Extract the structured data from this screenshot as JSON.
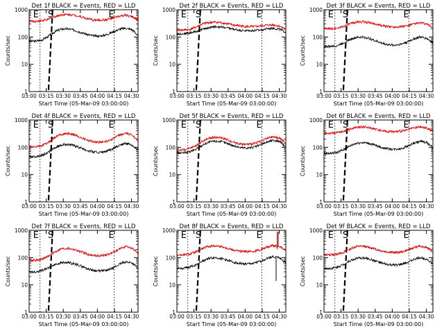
{
  "chart_data": [
    {
      "type": "line",
      "title": "Det 1f BLACK = Events, RED = LLD",
      "xlabel": "Start Time (05-Mar-09 03:00:00)",
      "ylabel": "Counts/sec",
      "xlim": [
        0,
        100
      ],
      "ylim": [
        1,
        1000
      ],
      "ylog": true,
      "x_tick_labels": [
        "03:00",
        "03:15",
        "03:30",
        "03:45",
        "04:00",
        "04:15",
        "04:30"
      ],
      "y_tick_labels": [
        "1",
        "10",
        "100",
        "1000"
      ],
      "markers": {
        "E1": 10,
        "S": 19,
        "E2": 78
      },
      "series": [
        {
          "color": "#000000",
          "values": [
            70,
            70,
            78,
            105,
            155,
            195,
            200,
            180,
            150,
            125,
            110,
            108,
            120,
            150,
            190,
            210,
            190,
            110
          ]
        },
        {
          "color": "#e00000",
          "values": [
            380,
            380,
            395,
            440,
            560,
            650,
            670,
            640,
            560,
            470,
            420,
            410,
            430,
            480,
            570,
            620,
            560,
            410
          ]
        }
      ]
    },
    {
      "type": "line",
      "title": "Det 2f BLACK = Events, RED = LLD",
      "xlabel": "Start Time (05-Mar-09 03:00:00)",
      "ylabel": "Counts/sec",
      "xlim": [
        0,
        100
      ],
      "ylim": [
        1,
        1000
      ],
      "ylog": true,
      "x_tick_labels": [
        "03:00",
        "03:15",
        "03:30",
        "03:45",
        "04:00",
        "04:15",
        "04:30"
      ],
      "y_tick_labels": [
        "1",
        "10",
        "100",
        "1000"
      ],
      "markers": {
        "E1": 10,
        "S": 19,
        "E2": 78
      },
      "series": [
        {
          "color": "#000000",
          "values": [
            130,
            132,
            140,
            160,
            190,
            220,
            240,
            230,
            210,
            190,
            175,
            170,
            172,
            180,
            200,
            210,
            190,
            150
          ]
        },
        {
          "color": "#e00000",
          "values": [
            180,
            182,
            190,
            230,
            300,
            340,
            350,
            330,
            300,
            270,
            250,
            240,
            240,
            250,
            270,
            280,
            250,
            190
          ]
        }
      ]
    },
    {
      "type": "line",
      "title": "Det 3f BLACK = Events, RED = LLD",
      "xlabel": "Start Time (05-Mar-09 03:00:00)",
      "ylabel": "Counts/sec",
      "xlim": [
        0,
        100
      ],
      "ylim": [
        1,
        1000
      ],
      "ylog": true,
      "x_tick_labels": [
        "03:00",
        "03:15",
        "03:30",
        "03:45",
        "04:00",
        "04:15",
        "04:30"
      ],
      "y_tick_labels": [
        "1",
        "10",
        "100",
        "1000"
      ],
      "markers": {
        "E1": 10,
        "S": 19,
        "E2": 78
      },
      "series": [
        {
          "color": "#000000",
          "values": [
            45,
            45,
            48,
            60,
            80,
            95,
            100,
            90,
            72,
            60,
            52,
            50,
            55,
            65,
            85,
            100,
            90,
            60
          ]
        },
        {
          "color": "#e00000",
          "values": [
            200,
            200,
            210,
            240,
            300,
            350,
            360,
            340,
            300,
            260,
            240,
            235,
            240,
            260,
            300,
            330,
            300,
            220
          ]
        }
      ]
    },
    {
      "type": "line",
      "title": "Det 4f BLACK = Events, RED = LLD",
      "xlabel": "Start Time (05-Mar-09 03:00:00)",
      "ylabel": "Counts/sec",
      "xlim": [
        0,
        100
      ],
      "ylim": [
        1,
        1000
      ],
      "ylog": true,
      "x_tick_labels": [
        "03:00",
        "03:15",
        "03:30",
        "03:45",
        "04:00",
        "04:15",
        "04:30"
      ],
      "y_tick_labels": [
        "1",
        "10",
        "100",
        "1000"
      ],
      "markers": {
        "E1": 10,
        "S": 19,
        "E2": 78
      },
      "series": [
        {
          "color": "#000000",
          "values": [
            45,
            46,
            50,
            65,
            95,
            120,
            130,
            115,
            95,
            78,
            68,
            65,
            70,
            85,
            115,
            140,
            125,
            75
          ]
        },
        {
          "color": "#e00000",
          "values": [
            105,
            105,
            115,
            150,
            230,
            300,
            320,
            290,
            230,
            185,
            160,
            155,
            165,
            200,
            270,
            320,
            290,
            170
          ]
        }
      ]
    },
    {
      "type": "line",
      "title": "Det 5f BLACK = Events, RED = LLD",
      "xlabel": "Start Time (05-Mar-09 03:00:00)",
      "ylabel": "Counts/sec",
      "xlim": [
        0,
        100
      ],
      "ylim": [
        1,
        1000
      ],
      "ylog": true,
      "x_tick_labels": [
        "03:00",
        "03:15",
        "03:30",
        "03:45",
        "04:00",
        "04:15",
        "04:30"
      ],
      "y_tick_labels": [
        "1",
        "10",
        "100",
        "1000"
      ],
      "markers": {
        "E1": 10,
        "S": 19,
        "E2": 78
      },
      "series": [
        {
          "color": "#000000",
          "values": [
            62,
            62,
            68,
            85,
            120,
            155,
            170,
            160,
            135,
            110,
            98,
            95,
            100,
            120,
            155,
            180,
            165,
            100
          ]
        },
        {
          "color": "#e00000",
          "values": [
            80,
            80,
            90,
            115,
            165,
            215,
            235,
            220,
            185,
            150,
            132,
            128,
            135,
            165,
            210,
            240,
            220,
            130
          ]
        }
      ]
    },
    {
      "type": "line",
      "title": "Det 6f BLACK = Events, RED = LLD",
      "xlabel": "Start Time (05-Mar-09 03:00:00)",
      "ylabel": "Counts/sec",
      "xlim": [
        0,
        100
      ],
      "ylim": [
        1,
        1000
      ],
      "ylog": true,
      "x_tick_labels": [
        "03:00",
        "03:15",
        "03:30",
        "03:45",
        "04:00",
        "04:15",
        "04:30"
      ],
      "y_tick_labels": [
        "1",
        "10",
        "100",
        "1000"
      ],
      "markers": {
        "E1": 10,
        "S": 19,
        "E2": 78
      },
      "series": [
        {
          "color": "#000000",
          "values": [
            60,
            60,
            65,
            80,
            110,
            140,
            150,
            140,
            118,
            98,
            88,
            85,
            90,
            108,
            140,
            165,
            150,
            95
          ]
        },
        {
          "color": "#e00000",
          "values": [
            330,
            330,
            340,
            380,
            460,
            540,
            560,
            530,
            470,
            410,
            380,
            375,
            390,
            430,
            510,
            560,
            510,
            390
          ]
        }
      ]
    },
    {
      "type": "line",
      "title": "Det 7f BLACK = Events, RED = LLD",
      "xlabel": "Start Time (05-Mar-09 03:00:00)",
      "ylabel": "Counts/sec",
      "xlim": [
        0,
        100
      ],
      "ylim": [
        1,
        1000
      ],
      "ylog": true,
      "x_tick_labels": [
        "03:00",
        "03:15",
        "03:30",
        "03:45",
        "04:00",
        "04:15",
        "04:30"
      ],
      "y_tick_labels": [
        "1",
        "10",
        "100",
        "1000"
      ],
      "markers": {
        "E1": 10,
        "S": 19,
        "E2": 78
      },
      "series": [
        {
          "color": "#000000",
          "values": [
            30,
            30,
            34,
            42,
            55,
            65,
            66,
            60,
            50,
            40,
            34,
            32,
            34,
            40,
            55,
            70,
            65,
            40
          ]
        },
        {
          "color": "#e00000",
          "values": [
            80,
            80,
            88,
            110,
            160,
            210,
            220,
            200,
            165,
            135,
            120,
            118,
            125,
            150,
            200,
            250,
            225,
            140
          ]
        }
      ]
    },
    {
      "type": "line",
      "title": "Det 8f BLACK = Events, RED = LLD",
      "xlabel": "Start Time (05-Mar-09 03:00:00)",
      "ylabel": "Counts/sec",
      "xlim": [
        0,
        100
      ],
      "ylim": [
        1,
        1000
      ],
      "ylog": true,
      "x_tick_labels": [
        "03:00",
        "03:15",
        "03:30",
        "03:45",
        "04:00",
        "04:15",
        "04:30"
      ],
      "y_tick_labels": [
        "1",
        "10",
        "100",
        "1000"
      ],
      "markers": {
        "E1": 10,
        "S": 19,
        "E2": 78
      },
      "series": [
        {
          "color": "#000000",
          "values": [
            40,
            40,
            45,
            55,
            75,
            95,
            100,
            92,
            78,
            66,
            60,
            58,
            62,
            72,
            92,
            110,
            98,
            62
          ]
        },
        {
          "color": "#e00000",
          "values": [
            125,
            125,
            135,
            160,
            215,
            260,
            270,
            250,
            215,
            185,
            170,
            165,
            170,
            195,
            240,
            280,
            255,
            170
          ]
        }
      ]
    },
    {
      "type": "line",
      "title": "Det 9f BLACK = Events, RED = LLD",
      "xlabel": "Start Time (05-Mar-09 03:00:00)",
      "ylabel": "Counts/sec",
      "xlim": [
        0,
        100
      ],
      "ylim": [
        1,
        1000
      ],
      "ylog": true,
      "x_tick_labels": [
        "03:00",
        "03:15",
        "03:30",
        "03:45",
        "04:00",
        "04:15",
        "04:30"
      ],
      "y_tick_labels": [
        "1",
        "10",
        "100",
        "1000"
      ],
      "markers": {
        "E1": 10,
        "S": 19,
        "E2": 78
      },
      "series": [
        {
          "color": "#000000",
          "values": [
            40,
            40,
            44,
            55,
            75,
            92,
            98,
            90,
            76,
            62,
            55,
            53,
            56,
            66,
            85,
            100,
            90,
            56
          ]
        },
        {
          "color": "#e00000",
          "values": [
            125,
            125,
            132,
            155,
            205,
            250,
            260,
            240,
            205,
            175,
            160,
            155,
            160,
            185,
            230,
            265,
            240,
            160
          ]
        }
      ]
    }
  ]
}
